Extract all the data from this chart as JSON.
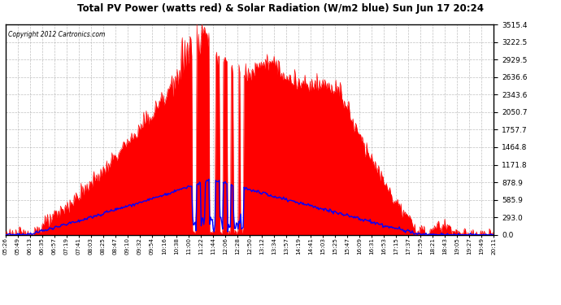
{
  "title": "Total PV Power (watts red) & Solar Radiation (W/m2 blue) Sun Jun 17 20:24",
  "copyright": "Copyright 2012 Cartronics.com",
  "yticks": [
    0.0,
    293.0,
    585.9,
    878.9,
    1171.8,
    1464.8,
    1757.7,
    2050.7,
    2343.6,
    2636.6,
    2929.5,
    3222.5,
    3515.4
  ],
  "ymax": 3515.4,
  "ymin": 0.0,
  "bg_color": "#ffffff",
  "plot_bg": "#ffffff",
  "grid_color": "#b0b0b0",
  "pv_color": "red",
  "solar_color": "blue",
  "x_labels": [
    "05:26",
    "05:49",
    "06:13",
    "06:35",
    "06:57",
    "07:19",
    "07:41",
    "08:03",
    "08:25",
    "08:47",
    "09:10",
    "09:32",
    "09:54",
    "10:16",
    "10:38",
    "11:00",
    "11:22",
    "11:44",
    "12:06",
    "12:28",
    "12:50",
    "13:12",
    "13:34",
    "13:57",
    "14:19",
    "14:41",
    "15:03",
    "15:25",
    "15:47",
    "16:09",
    "16:31",
    "16:53",
    "17:15",
    "17:37",
    "17:59",
    "18:21",
    "18:43",
    "19:05",
    "19:27",
    "19:49",
    "20:11"
  ]
}
